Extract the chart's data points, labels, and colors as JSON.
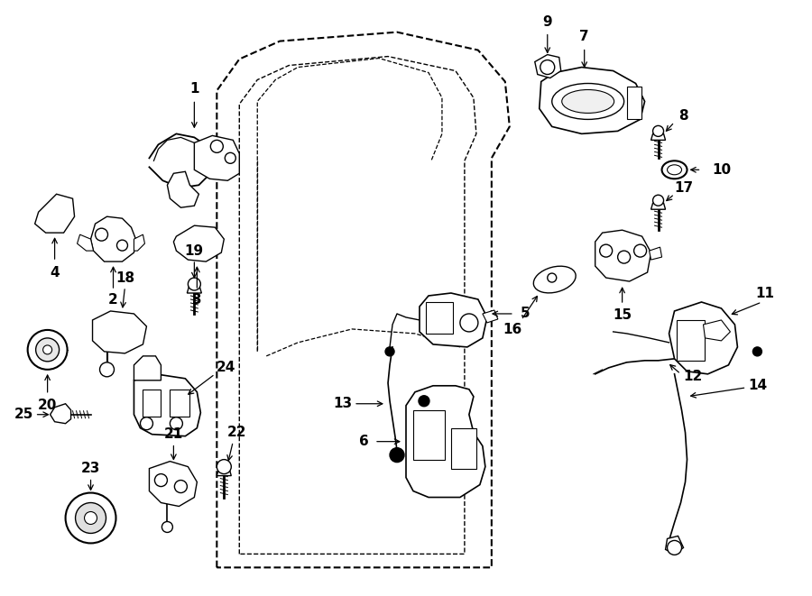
{
  "bg_color": "#ffffff",
  "line_color": "#000000",
  "fig_width": 9.0,
  "fig_height": 6.61,
  "dpi": 100,
  "label_fontsize": 11,
  "small_fontsize": 10
}
